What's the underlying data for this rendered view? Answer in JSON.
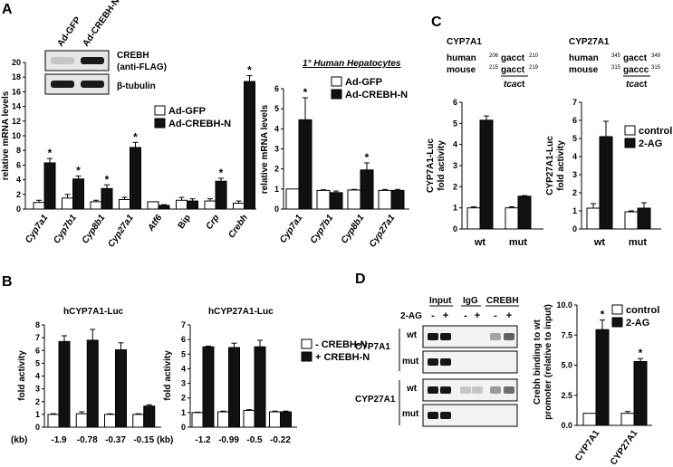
{
  "colors": {
    "filled": "#111111",
    "open": "#ffffff",
    "stroke": "#000000"
  },
  "panels": {
    "A": {
      "letter": "A",
      "blot": {
        "lanes": [
          "Ad-GFP",
          "Ad-CREBH-N"
        ],
        "rows": [
          {
            "label_lines": [
              "CREBH",
              "(anti-FLAG)"
            ],
            "bands": [
              0.15,
              0.95
            ]
          },
          {
            "label_lines": [
              "β-tubulin"
            ],
            "bands": [
              0.95,
              0.95
            ]
          }
        ]
      },
      "mouse": {
        "ylabel": "relative mRNA levels",
        "ylim": [
          0,
          20
        ],
        "yticks": [
          "0",
          "2",
          "4",
          "6",
          "8",
          "10",
          "12",
          "14",
          "16",
          "18",
          "20"
        ],
        "legend": [
          "Ad-GFP",
          "Ad-CREBH-N"
        ],
        "categories": [
          "Cyp7a1",
          "Cyp7b1",
          "Cyp8b1",
          "Cyp27a1",
          "Atf6",
          "Bip",
          "Crp",
          "Crebh"
        ],
        "italic_categories": [
          true,
          true,
          true,
          true,
          true,
          false,
          true,
          true
        ],
        "series": [
          {
            "name": "Ad-GFP",
            "values": [
              0.9,
              1.5,
              1.0,
              1.3,
              1.0,
              1.2,
              1.1,
              0.8
            ],
            "errors": [
              0.3,
              0.5,
              0.2,
              0.3,
              0,
              0.4,
              0.3,
              0.3
            ]
          },
          {
            "name": "Ad-CREBH-N",
            "values": [
              6.3,
              4.1,
              2.8,
              8.4,
              0.5,
              1.1,
              3.8,
              17.4
            ],
            "errors": [
              0.6,
              0.4,
              0.5,
              0.7,
              0.1,
              0.3,
              0.4,
              0.8
            ]
          }
        ],
        "stars": [
          true,
          true,
          true,
          true,
          false,
          false,
          true,
          true
        ]
      },
      "human": {
        "title": "1° Human Hepatocytes",
        "ylabel": "relative mRNA levels",
        "ylim": [
          0,
          6
        ],
        "yticks": [
          "0",
          "1",
          "2",
          "3",
          "4",
          "5",
          "6"
        ],
        "legend": [
          "Ad-GFP",
          "Ad-CREBH-N"
        ],
        "categories": [
          "Cyp7a1",
          "Cyp7b1",
          "Cyp8b1",
          "Cyp27a1"
        ],
        "series": [
          {
            "name": "Ad-GFP",
            "values": [
              1.0,
              0.93,
              0.95,
              0.93
            ],
            "errors": [
              0,
              0.03,
              0.03,
              0.05
            ]
          },
          {
            "name": "Ad-CREBH-N",
            "values": [
              4.45,
              0.82,
              1.95,
              0.93
            ],
            "errors": [
              1.1,
              0.08,
              0.35,
              0.05
            ]
          }
        ],
        "stars": [
          true,
          false,
          true,
          false
        ]
      }
    },
    "B": {
      "letter": "B",
      "legend": [
        "- CREBH-N",
        "+ CREBH-N"
      ],
      "charts": [
        {
          "title": "hCYP7A1-Luc",
          "ylabel": "fold activity",
          "ylim": [
            0,
            8
          ],
          "yticks": [
            "0",
            "1",
            "2",
            "3",
            "4",
            "5",
            "6",
            "7",
            "8"
          ],
          "kb_label": "(kb)",
          "categories": [
            "-1.9",
            "-0.78",
            "-0.37",
            "-0.15"
          ],
          "series": [
            {
              "name": "- CREBH-N",
              "values": [
                1.0,
                1.05,
                1.0,
                1.0
              ],
              "errors": [
                0.05,
                0.15,
                0.05,
                0.05
              ]
            },
            {
              "name": "+ CREBH-N",
              "values": [
                6.7,
                6.8,
                6.05,
                1.65
              ],
              "errors": [
                0.45,
                0.85,
                0.55,
                0.1
              ]
            }
          ]
        },
        {
          "title": "hCYP27A1-Luc",
          "ylabel": "fold activity",
          "ylim": [
            0,
            7
          ],
          "yticks": [
            "0",
            "1",
            "2",
            "3",
            "4",
            "5",
            "6",
            "7"
          ],
          "kb_label": "(kb)",
          "categories": [
            "-1.2",
            "-0.99",
            "-0.5",
            "-0.22"
          ],
          "series": [
            {
              "name": "- CREBH-N",
              "values": [
                1.0,
                1.05,
                1.15,
                1.05
              ],
              "errors": [
                0.03,
                0.05,
                0.05,
                0.05
              ]
            },
            {
              "name": "+ CREBH-N",
              "values": [
                5.5,
                5.45,
                5.5,
                1.05
              ],
              "errors": [
                0.05,
                0.3,
                0.45,
                0.05
              ]
            }
          ]
        }
      ]
    },
    "C": {
      "letter": "C",
      "legend": [
        "control",
        "2-AG"
      ],
      "seqs": [
        {
          "title": "CYP7A1",
          "human_label": "human",
          "mouse_label": "mouse",
          "human_pre": "206",
          "human_seq": "gacct",
          "human_post": "210",
          "mouse_pre": "215",
          "mouse_seq": "gacct",
          "mouse_post": "219",
          "mut_bold": "tca",
          "mut_rest": "ct"
        },
        {
          "title": "CYP27A1",
          "human_label": "human",
          "mouse_label": "mouse",
          "human_pre": "345",
          "human_seq": "gacct",
          "human_post": "349",
          "mouse_pre": "315",
          "mouse_seq": "gaccc",
          "mouse_post": "315",
          "mut_bold": "tca",
          "mut_rest": "ct"
        }
      ],
      "charts": [
        {
          "ylabel_lines": [
            "CYP7A1-Luc",
            "fold activity"
          ],
          "ylim": [
            0,
            6
          ],
          "yticks": [
            "0",
            "1",
            "2",
            "3",
            "4",
            "5",
            "6"
          ],
          "categories": [
            "wt",
            "mut"
          ],
          "series": [
            {
              "name": "control",
              "values": [
                1.0,
                1.0
              ],
              "errors": [
                0.05,
                0.05
              ]
            },
            {
              "name": "2-AG",
              "values": [
                5.15,
                1.55
              ],
              "errors": [
                0.2,
                0.03
              ]
            }
          ]
        },
        {
          "ylabel_lines": [
            "CYP27A1-Luc",
            "fold activity"
          ],
          "ylim": [
            0,
            7
          ],
          "yticks": [
            "0",
            "1",
            "2",
            "3",
            "4",
            "5",
            "6",
            "7"
          ],
          "categories": [
            "wt",
            "mut"
          ],
          "series": [
            {
              "name": "control",
              "values": [
                1.15,
                0.95
              ],
              "errors": [
                0.25,
                0.05
              ]
            },
            {
              "name": "2-AG",
              "values": [
                5.1,
                1.15
              ],
              "errors": [
                0.85,
                0.3
              ]
            }
          ]
        }
      ]
    },
    "D": {
      "letter": "D",
      "gel": {
        "headers": [
          "Input",
          "IgG",
          "CREBH"
        ],
        "treatment_label": "2-AG",
        "signs": [
          "-",
          "+",
          "-",
          "+",
          "-",
          "+"
        ],
        "groups": [
          {
            "gene": "CYP7A1",
            "rows": [
              {
                "label": "wt",
                "bands": [
                  0.95,
                  0.95,
                  0,
                  0,
                  0.3,
                  0.6
                ]
              },
              {
                "label": "mut",
                "bands": [
                  0.95,
                  0.95,
                  0,
                  0,
                  0,
                  0
                ]
              }
            ]
          },
          {
            "gene": "CYP27A1",
            "rows": [
              {
                "label": "wt",
                "bands": [
                  0.95,
                  0.95,
                  0.15,
                  0.15,
                  0.35,
                  0.55
                ]
              },
              {
                "label": "mut",
                "bands": [
                  0.95,
                  0.95,
                  0,
                  0,
                  0,
                  0
                ]
              }
            ]
          }
        ]
      },
      "chart": {
        "ylabel_lines": [
          "Crebh binding to wt",
          "promoter (relative to input)"
        ],
        "ylim": [
          0,
          10
        ],
        "yticks": [
          "0.0",
          "2.5",
          "5.0",
          "7.5",
          "10.0"
        ],
        "ytick_values": [
          0,
          2.5,
          5,
          7.5,
          10
        ],
        "legend": [
          "control",
          "2-AG"
        ],
        "categories": [
          "CYP7A1",
          "CYP27A1"
        ],
        "series": [
          {
            "name": "control",
            "values": [
              1.0,
              1.0
            ],
            "errors": [
              0,
              0.15
            ]
          },
          {
            "name": "2-AG",
            "values": [
              7.95,
              5.3
            ],
            "errors": [
              0.8,
              0.25
            ]
          }
        ],
        "stars": [
          true,
          true
        ]
      }
    }
  },
  "chart_data": [
    {
      "type": "bar",
      "title": "",
      "ylabel": "relative mRNA levels",
      "ylim": [
        0,
        20
      ],
      "categories": [
        "Cyp7a1",
        "Cyp7b1",
        "Cyp8b1",
        "Cyp27a1",
        "Atf6",
        "Bip",
        "Crp",
        "Crebh"
      ],
      "series": [
        {
          "name": "Ad-GFP",
          "values": [
            0.9,
            1.5,
            1.0,
            1.3,
            1.0,
            1.2,
            1.1,
            0.8
          ]
        },
        {
          "name": "Ad-CREBH-N",
          "values": [
            6.3,
            4.1,
            2.8,
            8.4,
            0.5,
            1.1,
            3.8,
            17.4
          ]
        }
      ]
    },
    {
      "type": "bar",
      "title": "1° Human Hepatocytes",
      "ylabel": "relative mRNA levels",
      "ylim": [
        0,
        6
      ],
      "categories": [
        "Cyp7a1",
        "Cyp7b1",
        "Cyp8b1",
        "Cyp27a1"
      ],
      "series": [
        {
          "name": "Ad-GFP",
          "values": [
            1.0,
            0.93,
            0.95,
            0.93
          ]
        },
        {
          "name": "Ad-CREBH-N",
          "values": [
            4.45,
            0.82,
            1.95,
            0.93
          ]
        }
      ]
    },
    {
      "type": "bar",
      "title": "hCYP7A1-Luc",
      "ylabel": "fold activity",
      "ylim": [
        0,
        8
      ],
      "categories": [
        "-1.9",
        "-0.78",
        "-0.37",
        "-0.15"
      ],
      "series": [
        {
          "name": "- CREBH-N",
          "values": [
            1.0,
            1.05,
            1.0,
            1.0
          ]
        },
        {
          "name": "+ CREBH-N",
          "values": [
            6.7,
            6.8,
            6.05,
            1.65
          ]
        }
      ]
    },
    {
      "type": "bar",
      "title": "hCYP27A1-Luc",
      "ylabel": "fold activity",
      "ylim": [
        0,
        7
      ],
      "categories": [
        "-1.2",
        "-0.99",
        "-0.5",
        "-0.22"
      ],
      "series": [
        {
          "name": "- CREBH-N",
          "values": [
            1.0,
            1.05,
            1.15,
            1.05
          ]
        },
        {
          "name": "+ CREBH-N",
          "values": [
            5.5,
            5.45,
            5.5,
            1.05
          ]
        }
      ]
    },
    {
      "type": "bar",
      "title": "",
      "ylabel": "CYP7A1-Luc fold activity",
      "ylim": [
        0,
        6
      ],
      "categories": [
        "wt",
        "mut"
      ],
      "series": [
        {
          "name": "control",
          "values": [
            1.0,
            1.0
          ]
        },
        {
          "name": "2-AG",
          "values": [
            5.15,
            1.55
          ]
        }
      ]
    },
    {
      "type": "bar",
      "title": "",
      "ylabel": "CYP27A1-Luc fold activity",
      "ylim": [
        0,
        7
      ],
      "categories": [
        "wt",
        "mut"
      ],
      "series": [
        {
          "name": "control",
          "values": [
            1.15,
            0.95
          ]
        },
        {
          "name": "2-AG",
          "values": [
            5.1,
            1.15
          ]
        }
      ]
    },
    {
      "type": "bar",
      "title": "",
      "ylabel": "Crebh binding to wt promoter (relative to input)",
      "ylim": [
        0,
        10
      ],
      "categories": [
        "CYP7A1",
        "CYP27A1"
      ],
      "series": [
        {
          "name": "control",
          "values": [
            1.0,
            1.0
          ]
        },
        {
          "name": "2-AG",
          "values": [
            7.95,
            5.3
          ]
        }
      ]
    }
  ]
}
